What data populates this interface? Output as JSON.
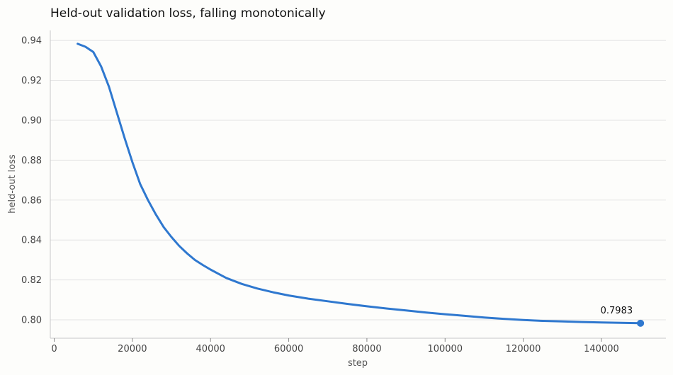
{
  "chart_data": {
    "type": "line",
    "title": "Held-out validation loss, falling monotonically",
    "xlabel": "step",
    "ylabel": "held-out loss",
    "xlim": [
      -1000,
      156500
    ],
    "ylim": [
      0.7908,
      0.945
    ],
    "xticks": [
      0,
      20000,
      40000,
      60000,
      80000,
      100000,
      120000,
      140000
    ],
    "xtick_labels": [
      "0",
      "20000",
      "40000",
      "60000",
      "80000",
      "100000",
      "120000",
      "140000"
    ],
    "yticks": [
      0.8,
      0.82,
      0.84,
      0.86,
      0.88,
      0.9,
      0.92,
      0.94
    ],
    "ytick_labels": [
      "0.80",
      "0.82",
      "0.84",
      "0.86",
      "0.88",
      "0.90",
      "0.92",
      "0.94"
    ],
    "grid": true,
    "series": [
      {
        "color": "#2f78cf",
        "x": [
          6000,
          8000,
          10000,
          12000,
          14000,
          16000,
          18000,
          20000,
          22000,
          24000,
          26000,
          28000,
          30000,
          32000,
          34000,
          36000,
          38000,
          40000,
          44000,
          48000,
          52000,
          56000,
          60000,
          65000,
          70000,
          75000,
          80000,
          85000,
          90000,
          95000,
          100000,
          105000,
          110000,
          115000,
          120000,
          125000,
          130000,
          135000,
          140000,
          145000,
          150000
        ],
        "y": [
          0.9383,
          0.9368,
          0.9342,
          0.927,
          0.9168,
          0.904,
          0.8912,
          0.879,
          0.868,
          0.86,
          0.8528,
          0.8465,
          0.8415,
          0.837,
          0.8333,
          0.83,
          0.8275,
          0.8252,
          0.821,
          0.818,
          0.8157,
          0.8138,
          0.8122,
          0.8106,
          0.8093,
          0.808,
          0.8068,
          0.8057,
          0.8047,
          0.8037,
          0.8028,
          0.802,
          0.8012,
          0.8005,
          0.7999,
          0.7995,
          0.7992,
          0.7989,
          0.7987,
          0.7985,
          0.7983
        ]
      }
    ],
    "annotations": [
      {
        "x": 150000,
        "y": 0.7983,
        "text": "0.7983"
      }
    ]
  }
}
